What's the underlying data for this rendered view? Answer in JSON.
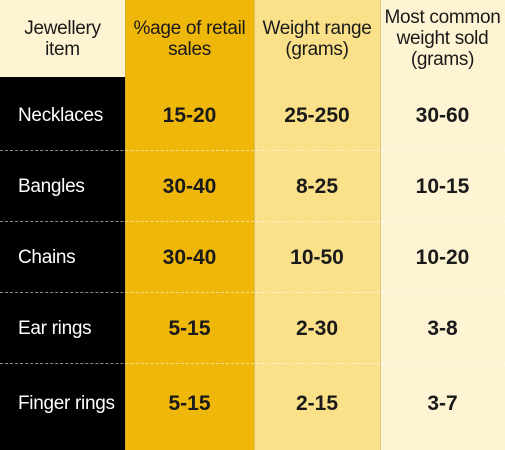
{
  "headers": [
    "Jewellery\nitem",
    "%age of retail\nsales",
    "Weight range\n(grams)",
    "Most common\nweight sold\n(grams)"
  ],
  "rows": [
    {
      "item": "Necklaces",
      "retail_sales_pct": "15-20",
      "weight_range": "25-250",
      "common_weight": "30-60"
    },
    {
      "item": "Bangles",
      "retail_sales_pct": "30-40",
      "weight_range": "8-25",
      "common_weight": "10-15"
    },
    {
      "item": "Chains",
      "retail_sales_pct": "30-40",
      "weight_range": "10-50",
      "common_weight": "10-20"
    },
    {
      "item": "Ear rings",
      "retail_sales_pct": "5-15",
      "weight_range": "2-30",
      "common_weight": "3-8"
    },
    {
      "item": "Finger rings",
      "retail_sales_pct": "5-15",
      "weight_range": "2-15",
      "common_weight": "3-7"
    }
  ],
  "colors": {
    "header_cream": "#fef3d2",
    "gold": "#efb70a",
    "light_gold": "#fbe08a",
    "cream": "#fef3d2",
    "label_column": "#000000"
  }
}
